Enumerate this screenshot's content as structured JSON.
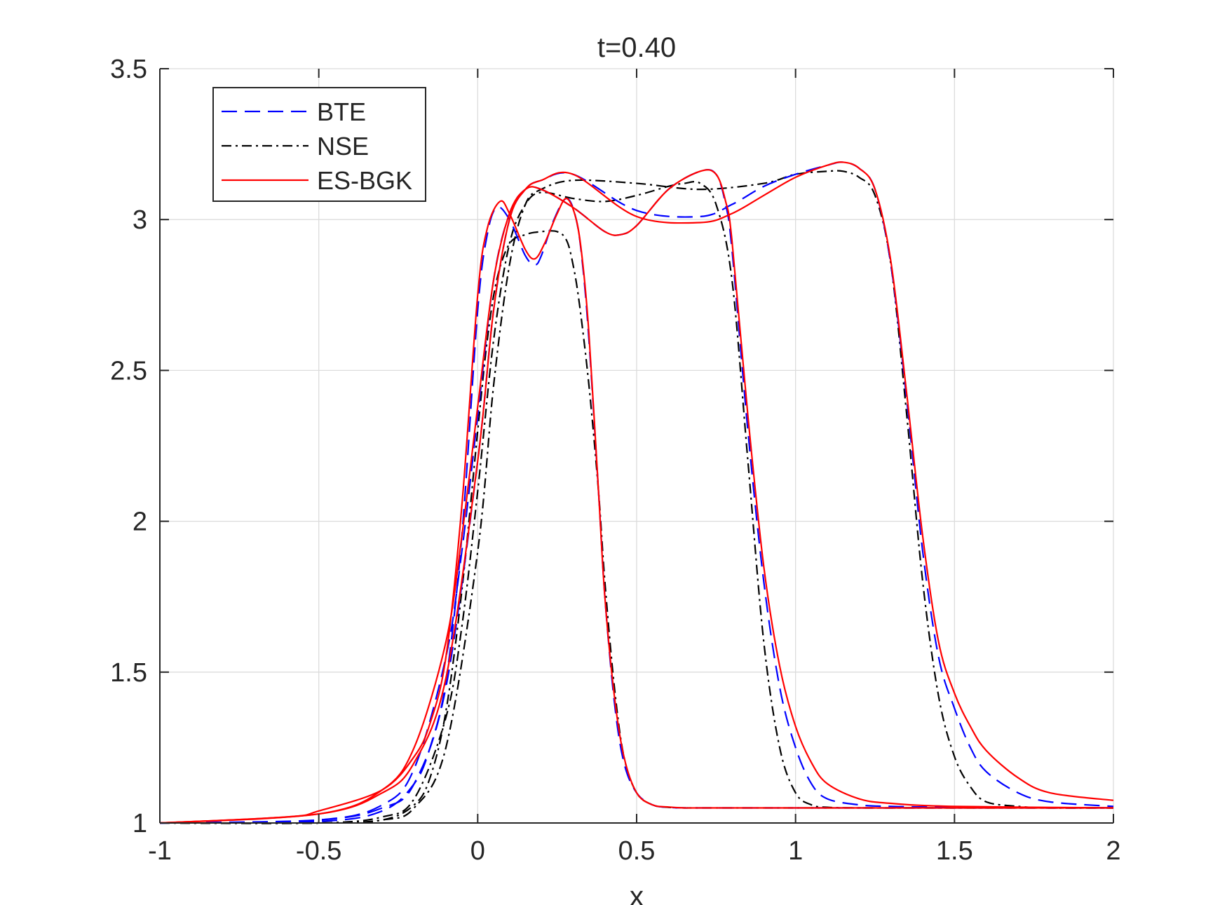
{
  "chart_data": {
    "type": "line",
    "title": "t=0.40",
    "xlabel": "x",
    "ylabel": "",
    "xlim": [
      -1,
      2
    ],
    "ylim": [
      1,
      3.5
    ],
    "grid": true,
    "legend_position": "top-left",
    "x_ticks": [
      "-1",
      "-0.5",
      "0",
      "0.5",
      "1",
      "1.5",
      "2"
    ],
    "y_ticks": [
      "1",
      "1.5",
      "2",
      "2.5",
      "3",
      "3.5"
    ],
    "colors": {
      "BTE": "#0000ff",
      "NSE": "#000000",
      "ES-BGK": "#ff0000",
      "grid": "#dcdcdc",
      "axis": "#262626"
    },
    "series": [
      {
        "name": "BTE",
        "style": "dashed",
        "profiles": [
          {
            "x": [
              -1,
              -0.5,
              -0.3,
              -0.2,
              -0.15,
              -0.1,
              -0.05,
              0,
              0.03,
              0.06,
              0.1,
              0.15,
              0.18,
              0.2,
              0.24,
              0.28,
              0.31,
              0.33,
              0.35,
              0.38,
              0.4,
              0.43,
              0.46,
              0.5,
              0.55,
              0.6,
              0.65,
              0.7,
              1.0,
              2.0
            ],
            "y": [
              1.0,
              1.005,
              1.04,
              1.13,
              1.25,
              1.47,
              1.95,
              2.7,
              2.95,
              3.04,
              3.0,
              2.88,
              2.85,
              2.88,
              3.0,
              3.07,
              3.0,
              2.85,
              2.6,
              2.1,
              1.75,
              1.4,
              1.2,
              1.1,
              1.06,
              1.052,
              1.05,
              1.05,
              1.05,
              1.05
            ]
          },
          {
            "x": [
              -1,
              -0.5,
              -0.3,
              -0.2,
              -0.1,
              -0.05,
              0,
              0.05,
              0.1,
              0.15,
              0.2,
              0.3,
              0.4,
              0.45,
              0.5,
              0.6,
              0.7,
              0.75,
              0.78,
              0.8,
              0.85,
              0.9,
              0.95,
              1.0,
              1.05,
              1.1,
              1.2,
              1.3,
              1.5,
              2.0
            ],
            "y": [
              1.0,
              1.01,
              1.06,
              1.18,
              1.55,
              1.9,
              2.35,
              2.8,
              3.02,
              3.1,
              3.1,
              3.04,
              2.96,
              2.95,
              2.98,
              3.1,
              3.16,
              3.15,
              3.05,
              2.9,
              2.3,
              1.8,
              1.45,
              1.25,
              1.13,
              1.08,
              1.06,
              1.055,
              1.052,
              1.05
            ]
          },
          {
            "x": [
              -1,
              -0.5,
              -0.3,
              -0.2,
              -0.1,
              0,
              0.05,
              0.1,
              0.15,
              0.2,
              0.3,
              0.5,
              0.7,
              0.8,
              0.9,
              1.0,
              1.1,
              1.15,
              1.2,
              1.25,
              1.3,
              1.35,
              1.4,
              1.45,
              1.5,
              1.55,
              1.6,
              1.7,
              1.8,
              2.0
            ],
            "y": [
              1.0,
              1.01,
              1.05,
              1.13,
              1.45,
              2.2,
              2.7,
              3.0,
              3.1,
              3.13,
              3.15,
              3.03,
              3.01,
              3.05,
              3.11,
              3.15,
              3.18,
              3.19,
              3.17,
              3.1,
              2.85,
              2.4,
              1.9,
              1.55,
              1.38,
              1.25,
              1.17,
              1.1,
              1.07,
              1.055
            ]
          }
        ]
      },
      {
        "name": "NSE",
        "style": "dashdot",
        "profiles": [
          {
            "x": [
              -1,
              -0.5,
              -0.3,
              -0.2,
              -0.15,
              -0.1,
              -0.05,
              0,
              0.03,
              0.06,
              0.1,
              0.15,
              0.2,
              0.25,
              0.28,
              0.3,
              0.32,
              0.35,
              0.38,
              0.4,
              0.43,
              0.46,
              0.5,
              0.55,
              0.6,
              0.65,
              0.7,
              1.0,
              2.0
            ],
            "y": [
              1.0,
              1.0,
              1.01,
              1.06,
              1.15,
              1.37,
              1.77,
              2.3,
              2.6,
              2.8,
              2.92,
              2.95,
              2.96,
              2.96,
              2.93,
              2.85,
              2.72,
              2.45,
              2.1,
              1.8,
              1.45,
              1.22,
              1.1,
              1.06,
              1.052,
              1.05,
              1.05,
              1.05,
              1.05
            ]
          },
          {
            "x": [
              -1,
              -0.5,
              -0.3,
              -0.2,
              -0.1,
              -0.05,
              0,
              0.05,
              0.1,
              0.15,
              0.2,
              0.3,
              0.4,
              0.5,
              0.6,
              0.65,
              0.7,
              0.75,
              0.8,
              0.85,
              0.9,
              0.95,
              1.0,
              1.05,
              1.1,
              1.2,
              1.5,
              2.0
            ],
            "y": [
              1.0,
              1.0,
              1.02,
              1.08,
              1.35,
              1.65,
              2.1,
              2.6,
              2.92,
              3.05,
              3.09,
              3.07,
              3.06,
              3.08,
              3.11,
              3.12,
              3.12,
              3.05,
              2.8,
              2.2,
              1.6,
              1.25,
              1.1,
              1.06,
              1.052,
              1.05,
              1.05,
              1.05
            ]
          },
          {
            "x": [
              -1,
              -0.5,
              -0.3,
              -0.2,
              -0.1,
              0,
              0.05,
              0.1,
              0.15,
              0.2,
              0.3,
              0.5,
              0.7,
              0.9,
              1.0,
              1.1,
              1.15,
              1.2,
              1.25,
              1.3,
              1.35,
              1.4,
              1.45,
              1.5,
              1.55,
              1.6,
              1.7,
              1.8,
              2.0
            ],
            "y": [
              1.0,
              1.0,
              1.01,
              1.05,
              1.25,
              1.9,
              2.45,
              2.85,
              3.05,
              3.1,
              3.13,
              3.12,
              3.1,
              3.12,
              3.15,
              3.16,
              3.16,
              3.14,
              3.08,
              2.85,
              2.35,
              1.8,
              1.42,
              1.22,
              1.12,
              1.07,
              1.055,
              1.05,
              1.05
            ]
          }
        ]
      },
      {
        "name": "ES-BGK",
        "style": "solid",
        "profiles": [
          {
            "x": [
              -1,
              -0.6,
              -0.5,
              -0.3,
              -0.2,
              -0.15,
              -0.1,
              -0.05,
              0,
              0.03,
              0.07,
              0.1,
              0.15,
              0.18,
              0.21,
              0.25,
              0.28,
              0.31,
              0.33,
              0.35,
              0.38,
              0.4,
              0.43,
              0.46,
              0.5,
              0.55,
              0.6,
              0.65,
              0.7,
              1.0,
              2.0
            ],
            "y": [
              1.0,
              1.02,
              1.04,
              1.11,
              1.22,
              1.33,
              1.55,
              2.05,
              2.75,
              2.97,
              3.06,
              3.02,
              2.9,
              2.87,
              2.92,
              3.02,
              3.07,
              3.0,
              2.86,
              2.62,
              2.1,
              1.75,
              1.42,
              1.22,
              1.1,
              1.06,
              1.053,
              1.05,
              1.05,
              1.05,
              1.05
            ]
          },
          {
            "x": [
              -1,
              -0.5,
              -0.3,
              -0.2,
              -0.1,
              -0.05,
              0,
              0.05,
              0.1,
              0.15,
              0.2,
              0.3,
              0.4,
              0.45,
              0.5,
              0.6,
              0.7,
              0.75,
              0.78,
              0.8,
              0.85,
              0.9,
              0.95,
              1.0,
              1.05,
              1.1,
              1.2,
              1.3,
              1.5,
              2.0
            ],
            "y": [
              1.0,
              1.03,
              1.11,
              1.25,
              1.6,
              1.95,
              2.38,
              2.8,
              3.02,
              3.1,
              3.1,
              3.04,
              2.96,
              2.95,
              2.98,
              3.1,
              3.16,
              3.15,
              3.06,
              2.93,
              2.35,
              1.85,
              1.52,
              1.32,
              1.2,
              1.13,
              1.08,
              1.065,
              1.055,
              1.05
            ]
          },
          {
            "x": [
              -1,
              -0.5,
              -0.3,
              -0.2,
              -0.1,
              0,
              0.05,
              0.1,
              0.15,
              0.2,
              0.3,
              0.5,
              0.7,
              0.8,
              0.9,
              1.0,
              1.1,
              1.15,
              1.2,
              1.25,
              1.3,
              1.35,
              1.4,
              1.45,
              1.5,
              1.55,
              1.6,
              1.7,
              1.8,
              2.0
            ],
            "y": [
              1.0,
              1.03,
              1.1,
              1.2,
              1.48,
              2.2,
              2.7,
              3.0,
              3.1,
              3.13,
              3.15,
              3.01,
              2.99,
              3.02,
              3.08,
              3.14,
              3.18,
              3.19,
              3.17,
              3.1,
              2.86,
              2.42,
              1.95,
              1.6,
              1.43,
              1.32,
              1.24,
              1.15,
              1.1,
              1.075
            ]
          }
        ]
      }
    ]
  }
}
